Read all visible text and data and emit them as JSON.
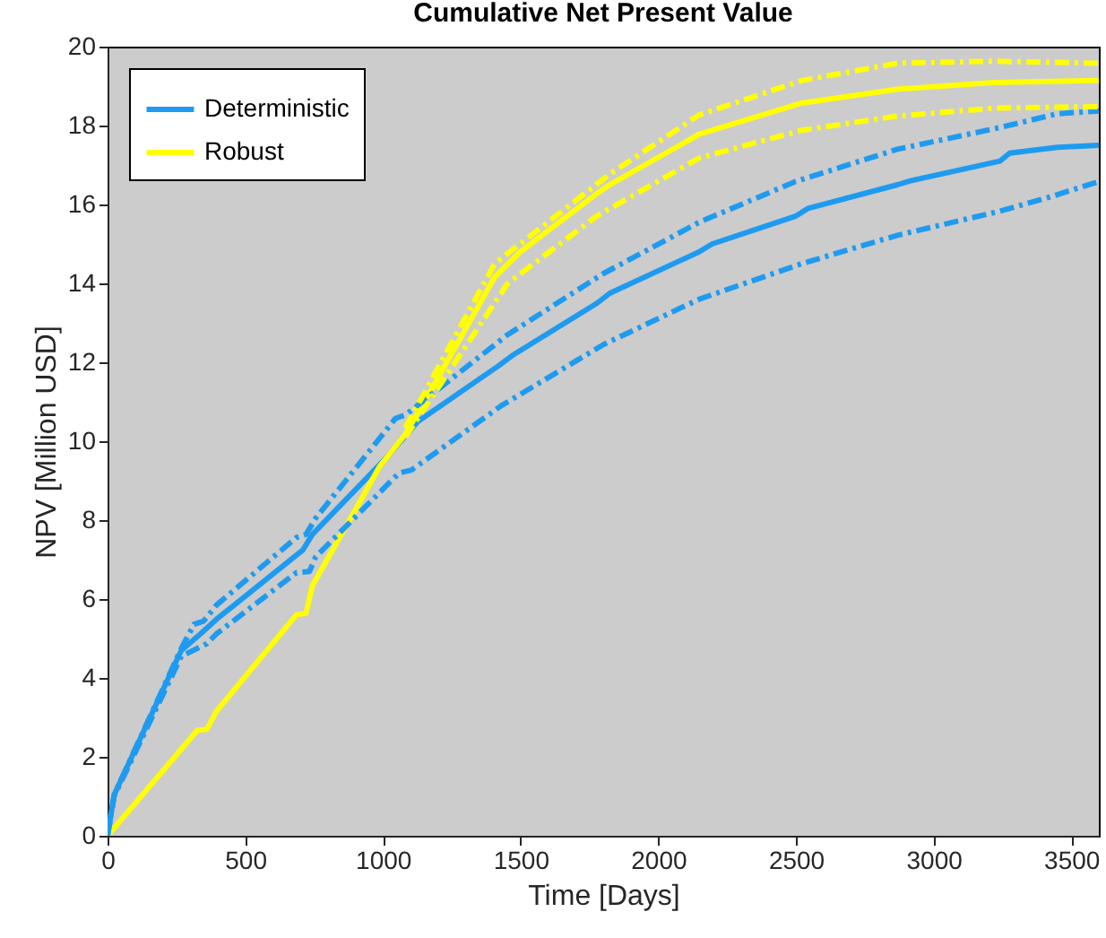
{
  "chart_data": {
    "type": "line",
    "title": "Cumulative Net Present Value",
    "xlabel": "Time [Days]",
    "ylabel": "NPV [Million USD]",
    "xlim": [
      0,
      3600
    ],
    "xticks": [
      0,
      500,
      1000,
      1500,
      2000,
      2500,
      3000,
      3500
    ],
    "ylim": [
      0,
      20
    ],
    "yticks": [
      0,
      2,
      4,
      6,
      8,
      10,
      12,
      14,
      16,
      18,
      20
    ],
    "grid": false,
    "legend": "top left",
    "series": [
      {
        "name": "Deterministic",
        "color": "#1e9bf0",
        "line_style": "solid",
        "x": [
          0,
          24,
          268,
          338,
          396,
          709,
          744,
          1011,
          1127,
          1418,
          1476,
          1778,
          1824,
          2149,
          2196,
          2498,
          2544,
          2869,
          2916,
          3241,
          3276,
          3450,
          3600
        ],
        "values": [
          0,
          1.04,
          4.7,
          5.12,
          5.49,
          7.24,
          7.64,
          9.57,
          10.5,
          11.9,
          12.2,
          13.5,
          13.75,
          14.8,
          15.0,
          15.7,
          15.9,
          16.5,
          16.6,
          17.1,
          17.3,
          17.45,
          17.5
        ]
      },
      {
        "name": "Robust",
        "color": "#ffff00",
        "line_style": "solid",
        "x": [
          0,
          326,
          361,
          396,
          686,
          721,
          744,
          895,
          988,
          1081,
          1197,
          1406,
          1499,
          1778,
          1824,
          2149,
          2521,
          2869,
          3218,
          3600
        ],
        "values": [
          0,
          2.67,
          2.7,
          3.16,
          5.6,
          5.64,
          6.34,
          8.2,
          9.36,
          10.17,
          11.56,
          14.16,
          14.8,
          16.28,
          16.5,
          17.78,
          18.57,
          18.92,
          19.09,
          19.14
        ]
      },
      {
        "color": "#1e9bf0",
        "line_style": "dashed",
        "x": [
          0,
          24,
          268,
          314,
          349,
          396,
          686,
          721,
          756,
          1046,
          1081,
          1453,
          1801,
          2149,
          2498,
          2869,
          3241,
          3450,
          3600
        ],
        "values": [
          0,
          1.04,
          4.75,
          5.36,
          5.44,
          5.85,
          7.56,
          7.64,
          8.05,
          10.58,
          10.66,
          12.7,
          14.25,
          15.55,
          16.58,
          17.4,
          17.95,
          18.3,
          18.37
        ]
      },
      {
        "color": "#1e9bf0",
        "line_style": "dashed",
        "x": [
          0,
          24,
          268,
          361,
          396,
          686,
          733,
          756,
          1058,
          1104,
          1430,
          1801,
          2149,
          2521,
          2869,
          3241,
          3427,
          3600
        ],
        "values": [
          0,
          1.0,
          4.55,
          4.87,
          5.12,
          6.67,
          6.7,
          7.07,
          9.19,
          9.27,
          10.9,
          12.45,
          13.6,
          14.5,
          15.22,
          15.83,
          16.2,
          16.58
        ]
      },
      {
        "color": "#ffff00",
        "line_style": "dashed",
        "x": [
          1081,
          1406,
          1824,
          2149,
          2521,
          2869,
          3218,
          3600
        ],
        "values": [
          10.33,
          14.5,
          16.77,
          18.27,
          19.14,
          19.58,
          19.63,
          19.58
        ]
      },
      {
        "color": "#ffff00",
        "line_style": "dashed",
        "x": [
          1081,
          1453,
          1778,
          2149,
          2521,
          2869,
          3218,
          3600
        ],
        "values": [
          10.1,
          14.0,
          15.71,
          17.18,
          17.88,
          18.24,
          18.44,
          18.48
        ]
      }
    ]
  }
}
